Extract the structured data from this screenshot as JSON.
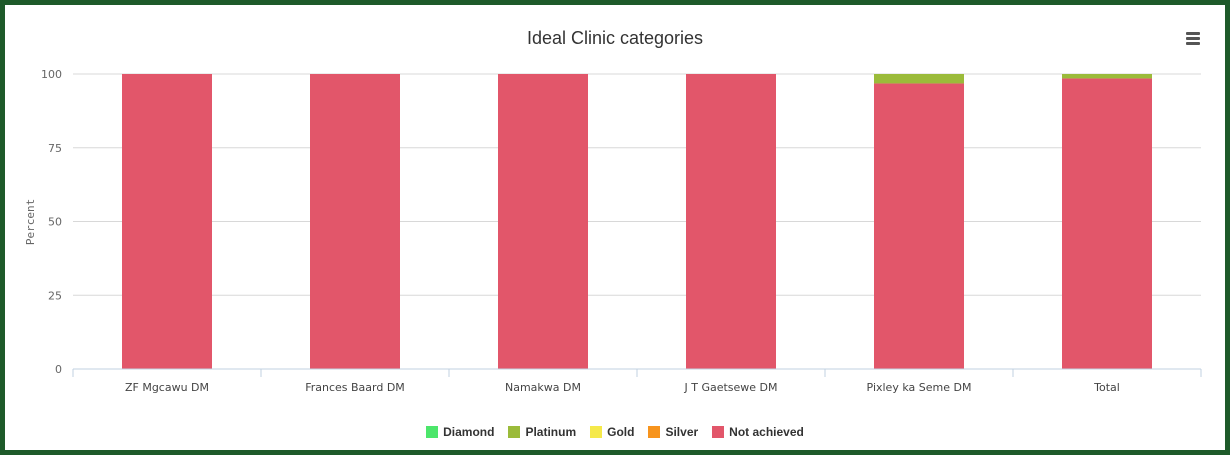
{
  "chart_data": {
    "type": "bar",
    "stacked": true,
    "title": "Ideal Clinic categories",
    "ylabel": "Percent",
    "xlabel": "",
    "ylim": [
      0,
      100
    ],
    "yticks": [
      0,
      25,
      50,
      75,
      100
    ],
    "categories": [
      "ZF Mgcawu DM",
      "Frances Baard DM",
      "Namakwa DM",
      "J T Gaetsewe DM",
      "Pixley ka Seme DM",
      "Total"
    ],
    "series": [
      {
        "name": "Diamond",
        "color": "#4ce66b",
        "values": [
          0,
          0,
          0,
          0,
          0,
          0
        ]
      },
      {
        "name": "Platinum",
        "color": "#9bbb3a",
        "values": [
          0,
          0,
          0,
          0,
          3.2,
          1.5
        ]
      },
      {
        "name": "Gold",
        "color": "#f5e94a",
        "values": [
          0,
          0,
          0,
          0,
          0,
          0
        ]
      },
      {
        "name": "Silver",
        "color": "#f7941d",
        "values": [
          0,
          0,
          0,
          0,
          0,
          0
        ]
      },
      {
        "name": "Not achieved",
        "color": "#e2566a",
        "values": [
          100,
          100,
          100,
          100,
          96.8,
          98.5
        ]
      }
    ],
    "grid": true,
    "legend_position": "bottom-center"
  }
}
